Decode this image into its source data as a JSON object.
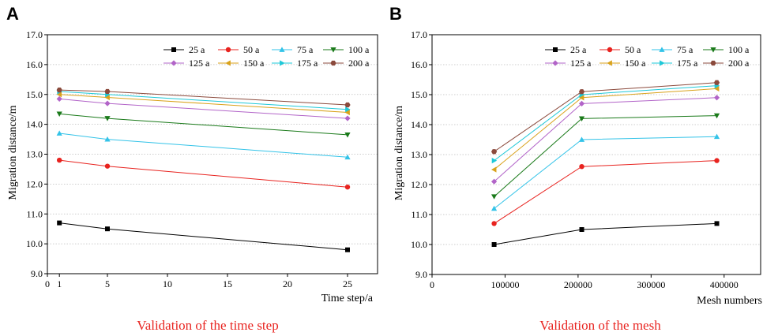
{
  "chart_data": [
    {
      "type": "line",
      "panel_label": "A",
      "caption": "Validation of the time step",
      "xlabel": "Time step/a",
      "ylabel": "Migration distance/m",
      "xlim": [
        0,
        27.5
      ],
      "ylim": [
        9.0,
        17.0
      ],
      "x_ticks": [
        0,
        1,
        5,
        10,
        15,
        20,
        25
      ],
      "x_tick_labels": [
        "0",
        "1",
        "5",
        "10",
        "15",
        "20",
        "25"
      ],
      "y_ticks": [
        9.0,
        10.0,
        11.0,
        12.0,
        13.0,
        14.0,
        15.0,
        16.0,
        17.0
      ],
      "y_tick_labels": [
        "9.0",
        "10.0",
        "11.0",
        "12.0",
        "13.0",
        "14.0",
        "15.0",
        "16.0",
        "17.0"
      ],
      "grid": true,
      "legend_position": "top-right",
      "x": [
        1,
        5,
        25
      ],
      "series": [
        {
          "name": "25 a",
          "values": [
            10.7,
            10.5,
            9.8
          ],
          "color": "#000000",
          "marker": "square"
        },
        {
          "name": "50 a",
          "values": [
            12.8,
            12.6,
            11.9
          ],
          "color": "#e8231f",
          "marker": "circle"
        },
        {
          "name": "75 a",
          "values": [
            13.7,
            13.5,
            12.9
          ],
          "color": "#33c3e8",
          "marker": "triangle-up"
        },
        {
          "name": "100 a",
          "values": [
            14.35,
            14.2,
            13.65
          ],
          "color": "#1a7a1a",
          "marker": "triangle-down"
        },
        {
          "name": "125 a",
          "values": [
            14.85,
            14.7,
            14.2
          ],
          "color": "#b264c8",
          "marker": "diamond"
        },
        {
          "name": "150 a",
          "values": [
            15.0,
            14.9,
            14.4
          ],
          "color": "#d9a21b",
          "marker": "triangle-left"
        },
        {
          "name": "175 a",
          "values": [
            15.1,
            15.0,
            14.5
          ],
          "color": "#1ec8d8",
          "marker": "triangle-right"
        },
        {
          "name": "200 a",
          "values": [
            15.15,
            15.1,
            14.65
          ],
          "color": "#8b4a3c",
          "marker": "hexagon"
        }
      ]
    },
    {
      "type": "line",
      "panel_label": "B",
      "caption": "Validation of the mesh",
      "xlabel": "Mesh numbers",
      "ylabel": "Migration distance/m",
      "xlim": [
        0,
        450000
      ],
      "ylim": [
        9.0,
        17.0
      ],
      "x_ticks": [
        0,
        100000,
        200000,
        300000,
        400000
      ],
      "x_tick_labels": [
        "0",
        "100000",
        "200000",
        "300000",
        "400000"
      ],
      "y_ticks": [
        9.0,
        10.0,
        11.0,
        12.0,
        13.0,
        14.0,
        15.0,
        16.0,
        17.0
      ],
      "y_tick_labels": [
        "9.0",
        "10.0",
        "11.0",
        "12.0",
        "13.0",
        "14.0",
        "15.0",
        "16.0",
        "17.0"
      ],
      "grid": true,
      "legend_position": "top-right",
      "x": [
        85000,
        205000,
        390000
      ],
      "series": [
        {
          "name": "25 a",
          "values": [
            10.0,
            10.5,
            10.7
          ],
          "color": "#000000",
          "marker": "square"
        },
        {
          "name": "50 a",
          "values": [
            10.7,
            12.6,
            12.8
          ],
          "color": "#e8231f",
          "marker": "circle"
        },
        {
          "name": "75 a",
          "values": [
            11.2,
            13.5,
            13.6
          ],
          "color": "#33c3e8",
          "marker": "triangle-up"
        },
        {
          "name": "100 a",
          "values": [
            11.6,
            14.2,
            14.3
          ],
          "color": "#1a7a1a",
          "marker": "triangle-down"
        },
        {
          "name": "125 a",
          "values": [
            12.1,
            14.7,
            14.9
          ],
          "color": "#b264c8",
          "marker": "diamond"
        },
        {
          "name": "150 a",
          "values": [
            12.5,
            14.9,
            15.2
          ],
          "color": "#d9a21b",
          "marker": "triangle-left"
        },
        {
          "name": "175 a",
          "values": [
            12.8,
            15.0,
            15.3
          ],
          "color": "#1ec8d8",
          "marker": "triangle-right"
        },
        {
          "name": "200 a",
          "values": [
            13.1,
            15.1,
            15.4
          ],
          "color": "#8b4a3c",
          "marker": "hexagon"
        }
      ]
    }
  ]
}
